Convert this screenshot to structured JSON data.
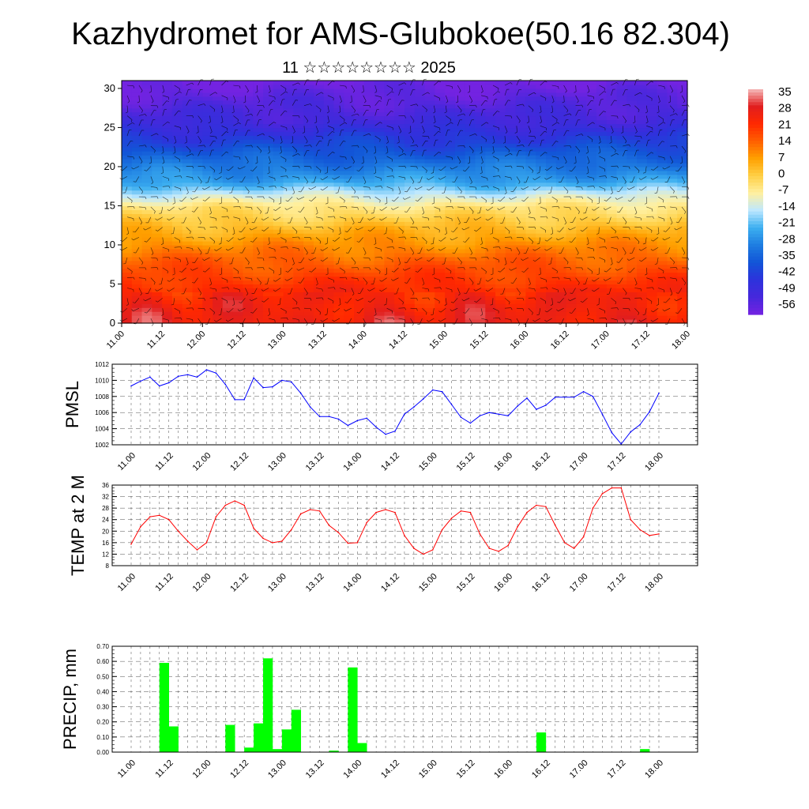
{
  "title": "Kazhydromet for AMS-Glubokoe(50.16 82.304)",
  "subtitle": "11 ☆☆☆☆☆☆☆☆ 2025",
  "time_ticks": [
    "11.00",
    "11.12",
    "12.00",
    "12.12",
    "13.00",
    "13.12",
    "14.00",
    "14.12",
    "15.00",
    "15.12",
    "16.00",
    "16.12",
    "17.00",
    "17.12",
    "18.00"
  ],
  "colors": {
    "pmsl_line": "#0000ff",
    "temp_line": "#ff0000",
    "precip_bar": "#00ff00",
    "grid": "#000000"
  },
  "chart_data": [
    {
      "type": "heatmap",
      "title": "",
      "xlabel": "",
      "ylabel": "",
      "ylim": [
        0,
        31
      ],
      "yticks": [
        0,
        5,
        10,
        15,
        20,
        25,
        30
      ],
      "xlim": [
        "11.00",
        "18.00"
      ],
      "colorbar": {
        "labels": [
          "35",
          "28",
          "21",
          "14",
          "7",
          "0",
          "-7",
          "-14",
          "-21",
          "-28",
          "-35",
          "-42",
          "-49",
          "-56"
        ],
        "colors": [
          "#f4b0b0",
          "#e02020",
          "#ff2800",
          "#ff6400",
          "#ffa000",
          "#ffd040",
          "#fff0a0",
          "#c0e8ff",
          "#40b0f0",
          "#2080e0",
          "#1050d8",
          "#3030e0",
          "#4020e0",
          "#7820e0"
        ]
      },
      "profile": {
        "levels": [
          0,
          4,
          8,
          12,
          15,
          16.5,
          18,
          22,
          26,
          31
        ],
        "values": [
          26,
          22,
          14,
          4,
          -5,
          -13,
          -22,
          -35,
          -48,
          -56
        ]
      },
      "has_wind_barbs": true
    },
    {
      "type": "line",
      "ylabel": "PMSL",
      "ylim": [
        1002,
        1012
      ],
      "yticks": [
        1002,
        1004,
        1006,
        1008,
        1010,
        1012
      ],
      "series": [
        {
          "color": "#0000ff",
          "values": [
            1009.3,
            1009.9,
            1010.4,
            1009.3,
            1009.7,
            1010.5,
            1010.7,
            1010.4,
            1011.3,
            1010.9,
            1009.5,
            1007.6,
            1007.6,
            1010.3,
            1009.1,
            1009.2,
            1010.0,
            1009.8,
            1008.4,
            1006.7,
            1005.5,
            1005.5,
            1005.2,
            1004.4,
            1005.0,
            1005.3,
            1004.2,
            1003.3,
            1003.7,
            1005.8,
            1006.7,
            1007.7,
            1008.8,
            1008.6,
            1007.0,
            1005.4,
            1004.7,
            1005.6,
            1006.0,
            1005.8,
            1005.6,
            1006.8,
            1007.8,
            1006.4,
            1006.9,
            1007.9,
            1007.9,
            1007.9,
            1008.6,
            1008.0,
            1005.8,
            1003.5,
            1002.1,
            1003.6,
            1004.5,
            1006.1,
            1008.4
          ]
        }
      ]
    },
    {
      "type": "line",
      "ylabel": "TEMP at 2 M",
      "ylim": [
        8,
        36
      ],
      "yticks": [
        8,
        12,
        16,
        20,
        24,
        28,
        32,
        36
      ],
      "series": [
        {
          "color": "#ff0000",
          "values": [
            15.5,
            21.5,
            25.0,
            25.5,
            24.0,
            20.0,
            16.5,
            13.5,
            16.0,
            25.0,
            29.0,
            30.5,
            29.0,
            21.0,
            17.5,
            16.0,
            16.5,
            20.5,
            26.0,
            27.5,
            27.0,
            22.0,
            19.5,
            15.8,
            16.0,
            23.0,
            26.5,
            27.5,
            26.5,
            18.5,
            14.0,
            12.0,
            13.5,
            20.5,
            24.5,
            27.0,
            26.5,
            19.0,
            14.0,
            13.0,
            15.0,
            21.5,
            26.5,
            29.0,
            28.5,
            22.0,
            16.0,
            14.0,
            18.0,
            28.0,
            33.0,
            35.0,
            35.0,
            24.0,
            20.5,
            18.5,
            19.0
          ]
        }
      ]
    },
    {
      "type": "bar",
      "ylabel": "PRECIP, mm",
      "ylim": [
        0,
        0.7
      ],
      "yticks": [
        "0.00",
        "0.10",
        "0.20",
        "0.30",
        "0.40",
        "0.50",
        "0.60",
        "0.70"
      ],
      "series": [
        {
          "color": "#00ff00",
          "values": [
            0,
            0,
            0,
            0.59,
            0.17,
            0,
            0,
            0,
            0,
            0,
            0.18,
            0,
            0.03,
            0.19,
            0.62,
            0.02,
            0.15,
            0.28,
            0,
            0,
            0,
            0.01,
            0,
            0.56,
            0.06,
            0,
            0,
            0,
            0,
            0,
            0,
            0,
            0,
            0,
            0,
            0,
            0,
            0,
            0,
            0,
            0,
            0,
            0,
            0.13,
            0,
            0,
            0,
            0,
            0,
            0,
            0,
            0,
            0,
            0,
            0.02,
            0
          ]
        }
      ]
    }
  ]
}
